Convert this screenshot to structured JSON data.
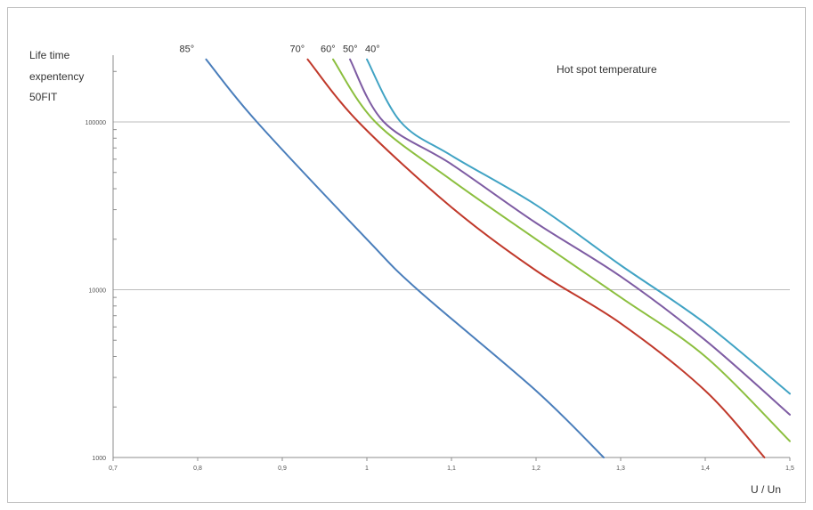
{
  "chart_data": {
    "type": "line",
    "title": "",
    "ylabel_lines": [
      "Life time",
      "expentency",
      "50FIT"
    ],
    "xlabel": "U / Un",
    "legend_title": "Hot spot temperature",
    "y_scale": "log",
    "xlim": [
      0.7,
      1.5
    ],
    "ylim": [
      1000,
      250000
    ],
    "grid": "horizontal at 10000 and 100000",
    "x_ticks": [
      0.7,
      0.8,
      0.9,
      1.0,
      1.1,
      1.2,
      1.3,
      1.4,
      1.5
    ],
    "x_tick_labels": [
      "0,7",
      "0,8",
      "0,9",
      "1",
      "1,1",
      "1,2",
      "1,3",
      "1,4",
      "1,5"
    ],
    "y_ticks": [
      1000,
      10000,
      100000
    ],
    "y_tick_labels": [
      "1000",
      "10000",
      "100000"
    ],
    "series": [
      {
        "name": "85°",
        "color": "#4a7ebb",
        "x": [
          0.81,
          0.87,
          1.0,
          1.06,
          1.2,
          1.28
        ],
        "y": [
          236000,
          100000,
          20000,
          10000,
          2500,
          1000
        ]
      },
      {
        "name": "70°",
        "color": "#c0392b",
        "x": [
          0.93,
          0.99,
          1.1,
          1.2,
          1.3,
          1.4,
          1.47
        ],
        "y": [
          236000,
          100000,
          31000,
          13000,
          6300,
          2500,
          1000
        ]
      },
      {
        "name": "60°",
        "color": "#8cbf3f",
        "x": [
          0.96,
          1.01,
          1.1,
          1.2,
          1.3,
          1.4,
          1.5
        ],
        "y": [
          236000,
          100000,
          45000,
          20000,
          9000,
          4000,
          1250
        ]
      },
      {
        "name": "50°",
        "color": "#7e5ca3",
        "x": [
          0.98,
          1.02,
          1.1,
          1.2,
          1.3,
          1.4,
          1.5
        ],
        "y": [
          236000,
          100000,
          56000,
          25000,
          12000,
          5000,
          1800
        ]
      },
      {
        "name": "40°",
        "color": "#41a3c4",
        "x": [
          1.0,
          1.04,
          1.1,
          1.2,
          1.3,
          1.4,
          1.5
        ],
        "y": [
          236000,
          100000,
          63000,
          32000,
          14000,
          6300,
          2400
        ]
      }
    ]
  }
}
